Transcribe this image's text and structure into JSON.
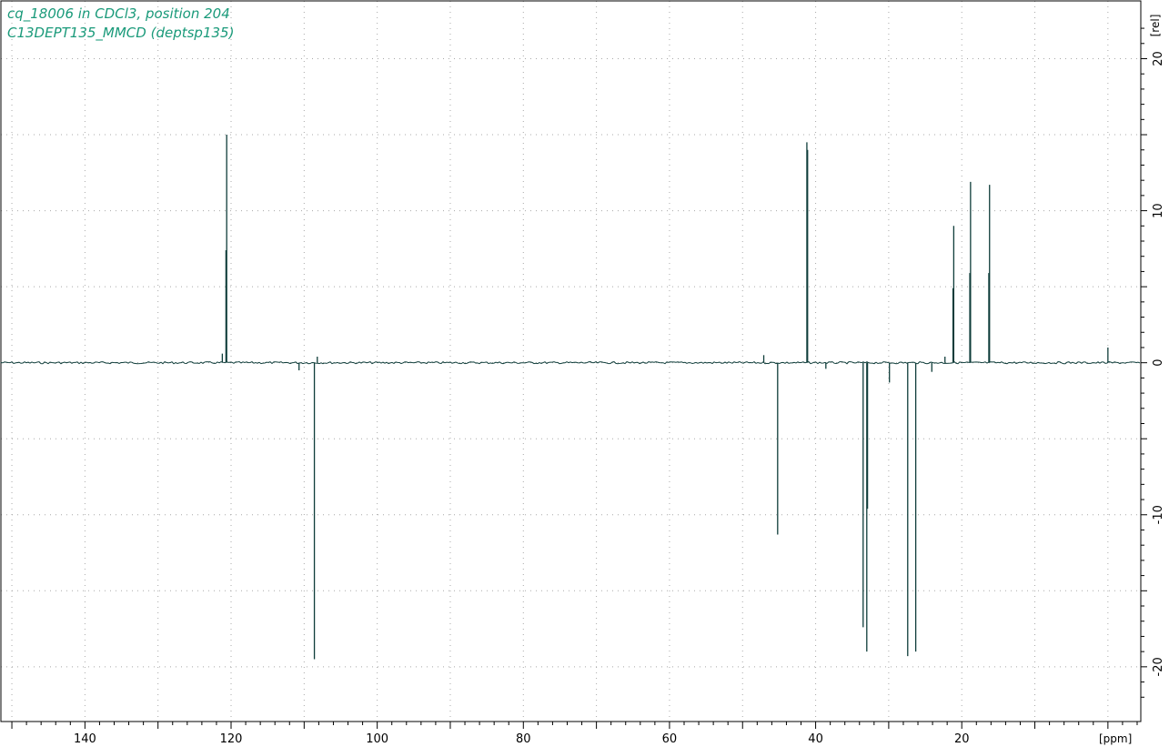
{
  "header": {
    "title_line1": "cq_18006 in CDCl3, position 204",
    "title_line2": "C13DEPT135_MMCD (deptsp135)"
  },
  "colors": {
    "spectrum": "#0f3d3a",
    "title": "#1a9a7a",
    "grid": "#a8a8a8",
    "axis": "#000000"
  },
  "chart_data": {
    "type": "line",
    "title": "cq_18006 in CDCl3, position 204",
    "subtitle": "C13DEPT135_MMCD (deptsp135)",
    "xlabel": "[ppm]",
    "ylabel": "[rel]",
    "xlim": [
      151.5,
      -4.5
    ],
    "ylim": [
      -23.6,
      23.8
    ],
    "x_reversed": true,
    "grid": true,
    "x_ticks": [
      140,
      120,
      100,
      80,
      60,
      40,
      20
    ],
    "x_tick_labels": [
      "140",
      "120",
      "100",
      "80",
      "60",
      "40",
      "20"
    ],
    "y_ticks": [
      20,
      10,
      0,
      -10,
      -20
    ],
    "y_tick_labels": [
      "20",
      "10",
      "0",
      "-10",
      "-20"
    ],
    "series": [
      {
        "peaks": [
          {
            "ppm": 120.6,
            "height": 15.0
          },
          {
            "ppm": 120.7,
            "height": 7.4
          },
          {
            "ppm": 108.6,
            "height": -19.5
          },
          {
            "ppm": 45.2,
            "height": -11.3
          },
          {
            "ppm": 41.2,
            "height": 14.5
          },
          {
            "ppm": 41.1,
            "height": 14.0
          },
          {
            "ppm": 33.5,
            "height": -17.4
          },
          {
            "ppm": 33.0,
            "height": -19.0
          },
          {
            "ppm": 32.9,
            "height": -9.6
          },
          {
            "ppm": 27.4,
            "height": -19.3
          },
          {
            "ppm": 26.3,
            "height": -19.0
          },
          {
            "ppm": 21.1,
            "height": 9.0
          },
          {
            "ppm": 21.2,
            "height": 4.9
          },
          {
            "ppm": 18.8,
            "height": 11.9
          },
          {
            "ppm": 18.9,
            "height": 5.9
          },
          {
            "ppm": 16.2,
            "height": 11.7
          },
          {
            "ppm": 16.3,
            "height": 5.9
          },
          {
            "ppm": 0.0,
            "height": 1.0
          },
          {
            "ppm": 121.2,
            "height": 0.6
          },
          {
            "ppm": 108.2,
            "height": 0.4
          },
          {
            "ppm": 110.7,
            "height": -0.5
          },
          {
            "ppm": 47.1,
            "height": 0.5
          },
          {
            "ppm": 38.6,
            "height": -0.4
          },
          {
            "ppm": 29.9,
            "height": -1.3
          },
          {
            "ppm": 24.1,
            "height": -0.6
          },
          {
            "ppm": 22.3,
            "height": 0.4
          }
        ]
      }
    ]
  }
}
